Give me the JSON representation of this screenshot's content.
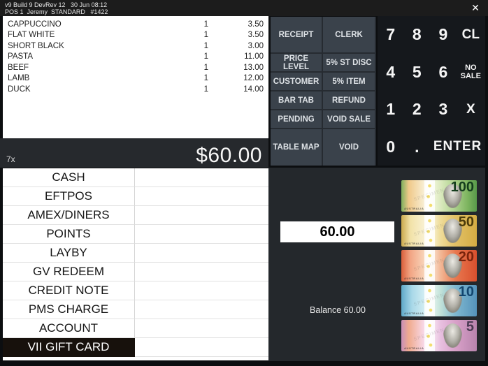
{
  "titlebar": {
    "line1": "v9 Build 9 DevRev 12   30 Jun 08:12",
    "line2": "POS 1  Jeremy  STANDARD   #1422",
    "close_icon": "✕"
  },
  "sale": {
    "items": [
      {
        "name": "CAPPUCCINO",
        "qty": "1",
        "price": "3.50"
      },
      {
        "name": "FLAT WHITE",
        "qty": "1",
        "price": "3.50"
      },
      {
        "name": "SHORT BLACK",
        "qty": "1",
        "price": "3.00"
      },
      {
        "name": "PASTA",
        "qty": "1",
        "price": "11.00"
      },
      {
        "name": "BEEF",
        "qty": "1",
        "price": "13.00"
      },
      {
        "name": "LAMB",
        "qty": "1",
        "price": "12.00"
      },
      {
        "name": "DUCK",
        "qty": "1",
        "price": "14.00"
      }
    ],
    "count_label": "7x",
    "total": "$60.00"
  },
  "functions": {
    "rows": [
      [
        "RECEIPT",
        "CLERK"
      ],
      [
        "PRICE LEVEL",
        "5% ST DISC"
      ],
      [
        "CUSTOMER",
        "5% ITEM"
      ],
      [
        "BAR TAB",
        "REFUND"
      ],
      [
        "PENDING",
        "VOID SALE"
      ],
      [
        "TABLE MAP",
        "VOID"
      ]
    ]
  },
  "keypad": {
    "rows": [
      [
        "7",
        "8",
        "9",
        "CL"
      ],
      [
        "4",
        "5",
        "6",
        "NO SALE"
      ],
      [
        "1",
        "2",
        "3",
        "X"
      ],
      [
        "0",
        ".",
        "ENTER"
      ]
    ]
  },
  "tenders": {
    "items": [
      "CASH",
      "EFTPOS",
      "AMEX/DINERS",
      "POINTS",
      "LAYBY",
      "GV REDEEM",
      "CREDIT NOTE",
      "PMS CHARGE",
      "ACCOUNT",
      "VII GIFT CARD"
    ],
    "selected": "VII GIFT CARD"
  },
  "payment": {
    "amount": "60.00",
    "balance": "Balance 60.00"
  },
  "cash_notes": {
    "country_label": "AUSTRALIA",
    "specimen_label": "SPECIMEN",
    "denominations": [
      {
        "value": "100",
        "color": "#58994a"
      },
      {
        "value": "50",
        "color": "#d4ac43"
      },
      {
        "value": "20",
        "color": "#d9502e"
      },
      {
        "value": "10",
        "color": "#5593bb"
      },
      {
        "value": "5",
        "color": "#b884ad"
      }
    ]
  },
  "colors": {
    "titlebar_bg": "#1c1c1c",
    "function_button_bg": "#3a424b",
    "keypad_bg": "#15181c",
    "total_bar_bg": "#26292d",
    "payment_panel_bg": "#24282c",
    "selected_tender_bg": "#17110c",
    "list_bg": "#ffffff"
  }
}
